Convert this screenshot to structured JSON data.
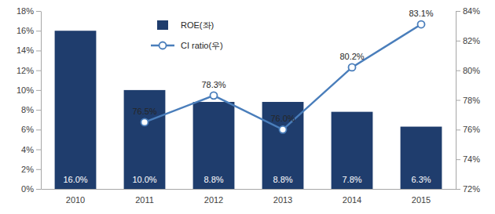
{
  "chart_data": {
    "type": "bar",
    "categories": [
      "2010",
      "2011",
      "2012",
      "2013",
      "2014",
      "2015"
    ],
    "series": [
      {
        "name": "ROE(좌)",
        "type": "bar",
        "color": "#1F3D6D",
        "values": [
          16.0,
          10.0,
          8.8,
          8.8,
          7.8,
          6.3
        ],
        "value_labels": [
          "16.0%",
          "10.0%",
          "8.8%",
          "8.8%",
          "7.8%",
          "6.3%"
        ]
      },
      {
        "name": "CI ratio(우)",
        "type": "line",
        "axis": "y2",
        "color": "#4A7EBB",
        "marker": "circle",
        "values": [
          null,
          76.5,
          78.3,
          76.0,
          80.2,
          83.1
        ],
        "value_labels": [
          null,
          "76.5%",
          "78.3%",
          "76.0%",
          "80.2%",
          "83.1%"
        ]
      }
    ],
    "ylim": [
      0,
      18
    ],
    "yticks": [
      {
        "value": 0,
        "label": "0%"
      },
      {
        "value": 2,
        "label": "2%"
      },
      {
        "value": 4,
        "label": "4%"
      },
      {
        "value": 6,
        "label": "6%"
      },
      {
        "value": 8,
        "label": "8%"
      },
      {
        "value": 10,
        "label": "10%"
      },
      {
        "value": 12,
        "label": "12%"
      },
      {
        "value": 14,
        "label": "14%"
      },
      {
        "value": 16,
        "label": "16%"
      },
      {
        "value": 18,
        "label": "18%"
      }
    ],
    "y2lim": [
      72,
      84
    ],
    "y2ticks": [
      {
        "value": 72,
        "label": "72%"
      },
      {
        "value": 74,
        "label": "74%"
      },
      {
        "value": 76,
        "label": "76%"
      },
      {
        "value": 78,
        "label": "78%"
      },
      {
        "value": 80,
        "label": "80%"
      },
      {
        "value": 82,
        "label": "82%"
      },
      {
        "value": 84,
        "label": "84%"
      }
    ],
    "data_labels": true,
    "legend": "upper left"
  }
}
